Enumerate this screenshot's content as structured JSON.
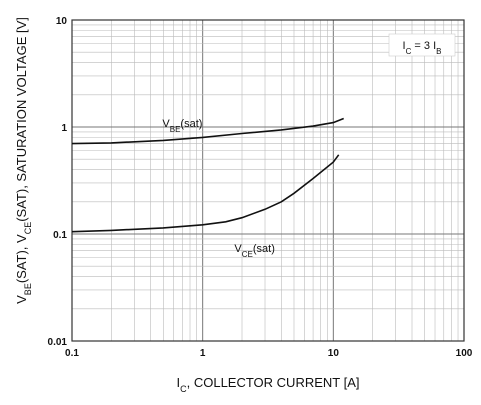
{
  "chart_data": {
    "type": "line",
    "x_scale": "log",
    "y_scale": "log",
    "xlim": [
      0.1,
      100
    ],
    "ylim": [
      0.01,
      10
    ],
    "grid": true,
    "x_ticks": [
      "0.1",
      "1",
      "10",
      "100"
    ],
    "y_ticks": [
      "0.01",
      "0.1",
      "1",
      "10"
    ],
    "xlabel": {
      "prefix": "I",
      "sub": "C",
      "suffix": ", COLLECTOR CURRENT [A]"
    },
    "ylabel": {
      "parts": [
        {
          "t": "V"
        },
        {
          "t": "BE",
          "sub": true
        },
        {
          "t": "(SAT), V"
        },
        {
          "t": "CE",
          "sub": true
        },
        {
          "t": "(SAT), SATURATION VOLTAGE [V]"
        }
      ]
    },
    "annotation": {
      "parts": [
        {
          "t": "I"
        },
        {
          "t": "C",
          "sub": true
        },
        {
          "t": " = 3 I"
        },
        {
          "t": "B",
          "sub": true
        }
      ]
    },
    "series": [
      {
        "label_parts": [
          {
            "t": "V"
          },
          {
            "t": "BE",
            "sub": true
          },
          {
            "t": "(sat)"
          }
        ],
        "x": [
          0.1,
          0.2,
          0.5,
          1,
          2,
          4,
          7,
          10,
          12
        ],
        "y": [
          0.7,
          0.71,
          0.75,
          0.8,
          0.87,
          0.94,
          1.02,
          1.1,
          1.2
        ]
      },
      {
        "label_parts": [
          {
            "t": "V"
          },
          {
            "t": "CE",
            "sub": true
          },
          {
            "t": "(sat)"
          }
        ],
        "x": [
          0.1,
          0.2,
          0.5,
          1,
          1.5,
          2,
          3,
          4,
          5,
          7,
          10,
          11
        ],
        "y": [
          0.105,
          0.108,
          0.114,
          0.122,
          0.13,
          0.142,
          0.17,
          0.2,
          0.24,
          0.33,
          0.47,
          0.55
        ]
      }
    ]
  }
}
